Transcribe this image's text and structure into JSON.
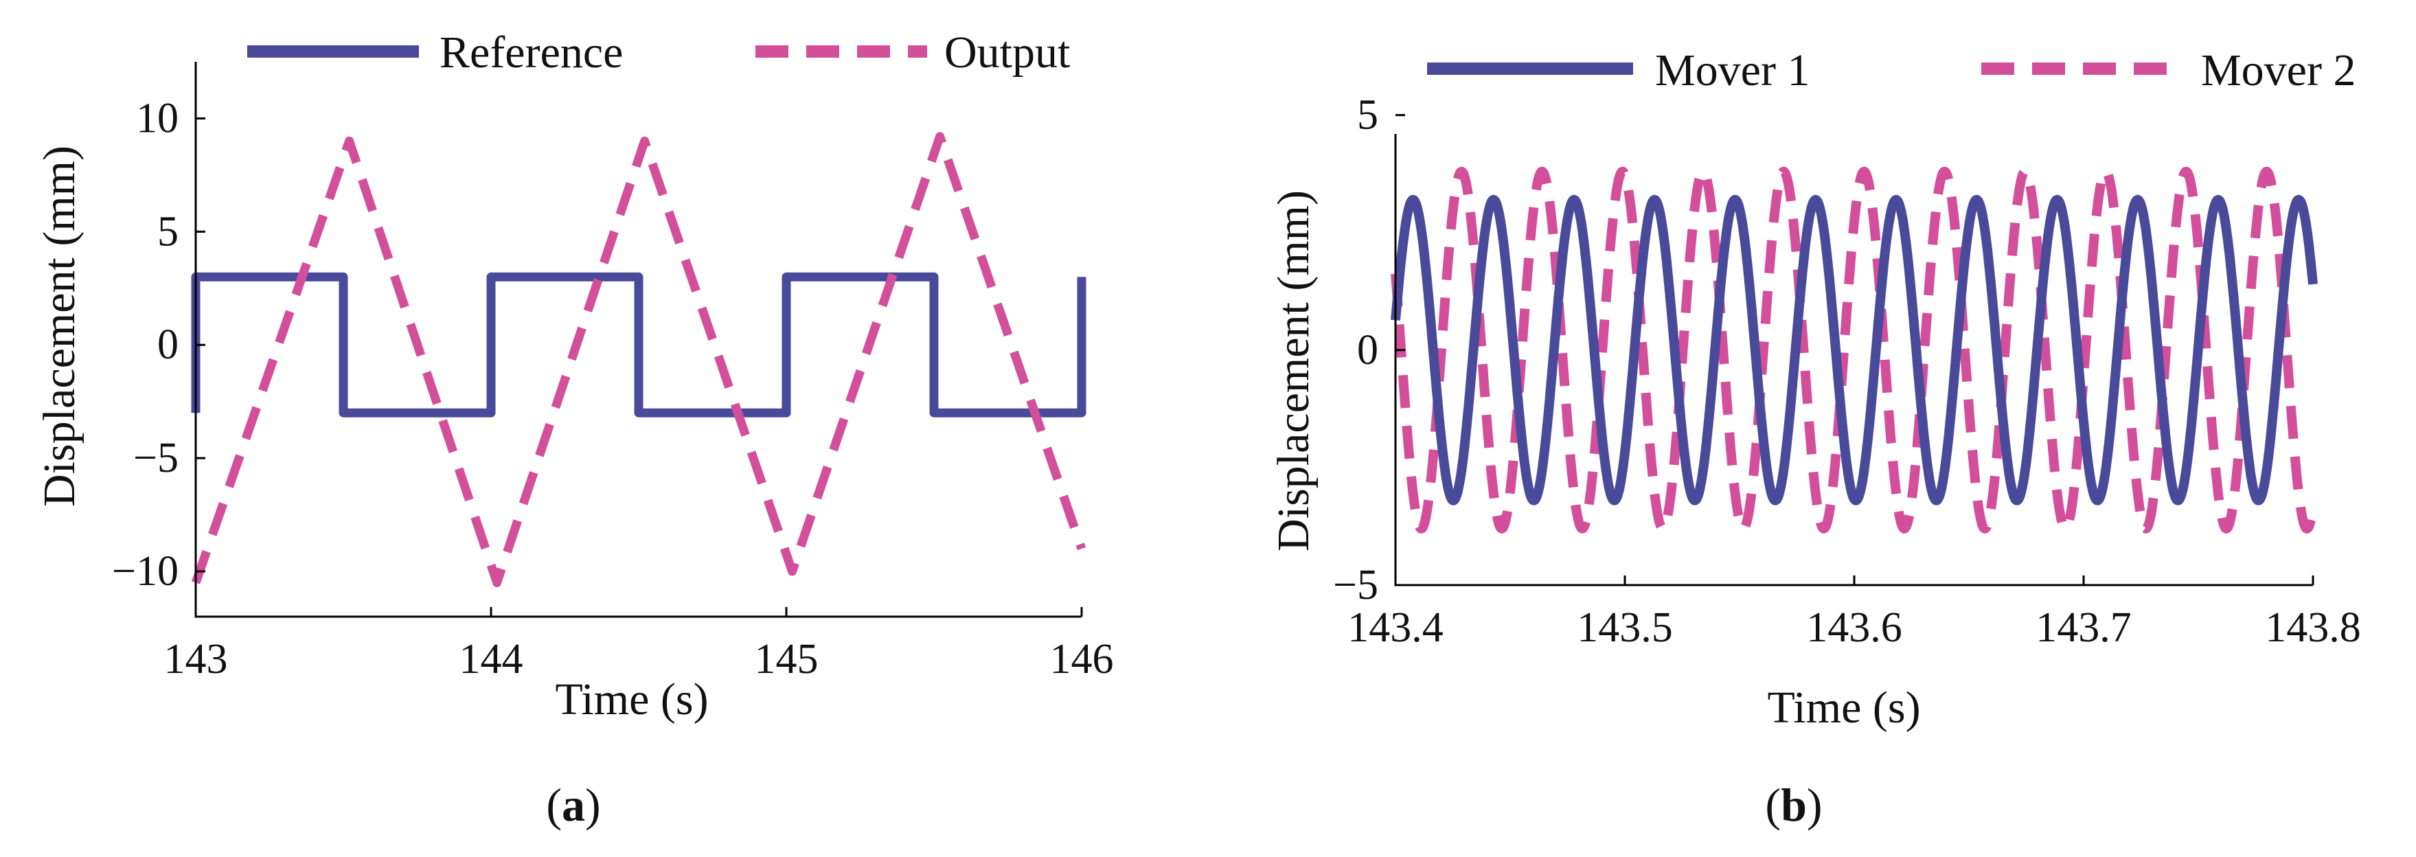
{
  "colors": {
    "reference": "#4a4a9a",
    "output": "#d44f9b"
  },
  "chart_data": [
    {
      "type": "line",
      "title": "",
      "caption": {
        "open": "(",
        "letter": "a",
        "close": ")"
      },
      "xlabel": "Time (s)",
      "ylabel": "Displacement (mm)",
      "xlim": [
        143,
        146
      ],
      "ylim": [
        -12,
        12.5
      ],
      "xticks": [
        143,
        144,
        145,
        146
      ],
      "xtick_labels": [
        "143",
        "144",
        "145",
        "146"
      ],
      "yticks": [
        10,
        5,
        0,
        -5,
        -10
      ],
      "ytick_labels": [
        "10",
        "5",
        "0",
        "−5",
        "−10"
      ],
      "legend": {
        "placement": "top",
        "entries": [
          "Reference",
          "Output"
        ]
      },
      "series": [
        {
          "name": "Reference",
          "style": "solid",
          "x": [
            143,
            143,
            143.5,
            143.5,
            144,
            144,
            144.5,
            144.5,
            145,
            145,
            145.5,
            145.5,
            146,
            146
          ],
          "y": [
            -3,
            3,
            3,
            -3,
            -3,
            3,
            3,
            -3,
            -3,
            3,
            3,
            -3,
            -3,
            3
          ]
        },
        {
          "name": "Output",
          "style": "dashed",
          "x": [
            143,
            143.52,
            144.02,
            144.52,
            145.02,
            145.52,
            146
          ],
          "y": [
            -10.5,
            9,
            -10.5,
            9,
            -10,
            9.2,
            -9
          ]
        }
      ]
    },
    {
      "type": "line",
      "title": "",
      "caption": {
        "open": "(",
        "letter": "b",
        "close": ")"
      },
      "xlabel": "Time (s)",
      "ylabel": "Displacement (mm)",
      "xlim": [
        143.4,
        143.8
      ],
      "ylim": [
        -5,
        4.6
      ],
      "xticks": [
        143.4,
        143.5,
        143.6,
        143.7,
        143.8
      ],
      "xtick_labels": [
        "143.4",
        "143.5",
        "143.6",
        "143.7",
        "143.8"
      ],
      "yticks": [
        5,
        0,
        -5
      ],
      "ytick_labels": [
        "5",
        "0",
        "−5"
      ],
      "legend": {
        "placement": "top",
        "entries": [
          "Mover 1",
          "Mover 2"
        ]
      },
      "series": [
        {
          "name": "Mover 1",
          "style": "solid",
          "amplitude": 3.2,
          "period_s": 0.0351,
          "phase_rad": 0.2
        },
        {
          "name": "Mover 2",
          "style": "dashed",
          "amplitude": 3.8,
          "period_s": 0.0351,
          "phase_rad": 2.7
        }
      ]
    }
  ]
}
